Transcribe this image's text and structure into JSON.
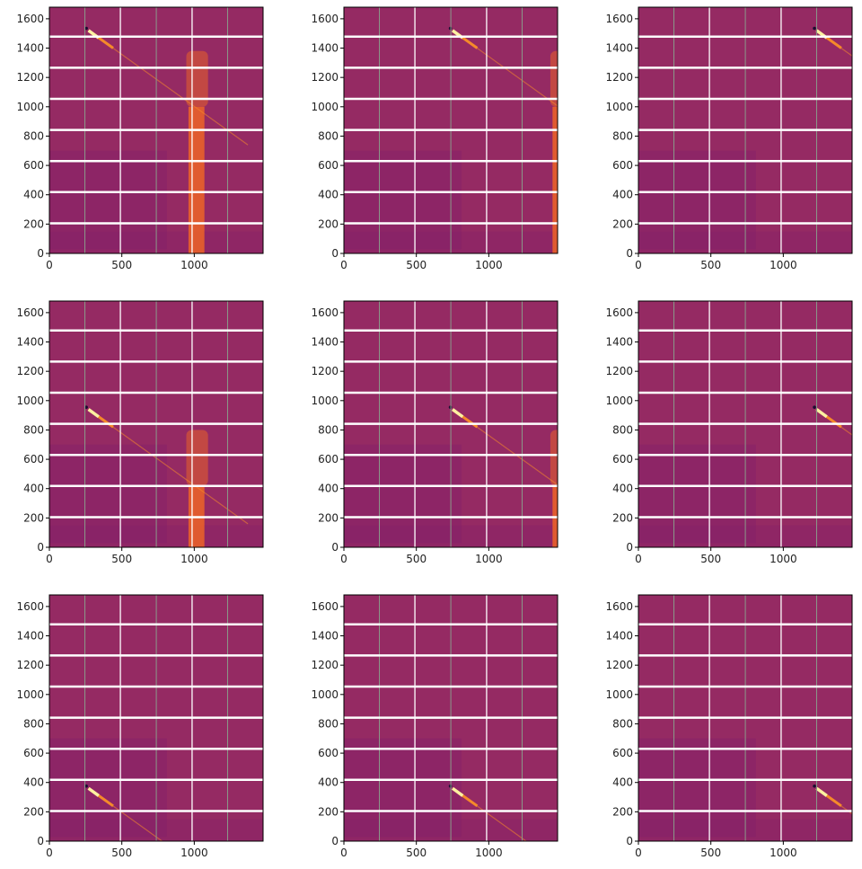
{
  "chart_data": {
    "type": "heatmap",
    "colormap": "inferno",
    "layout": {
      "rows": 3,
      "cols": 3
    },
    "xlim": [
      0,
      1475
    ],
    "ylim": [
      0,
      1679
    ],
    "xticks": [
      0,
      500,
      1000
    ],
    "yticks": [
      0,
      200,
      400,
      600,
      800,
      1000,
      1200,
      1400,
      1600
    ],
    "module_gaps_y": [
      205,
      418,
      630,
      842,
      1054,
      1266,
      1478
    ],
    "module_gaps_x_bright": [
      490,
      985
    ],
    "module_gaps_x_faint": [
      245,
      738,
      1230
    ],
    "colors": {
      "background": "#952a63",
      "background_dark": "#83206a",
      "streak": "#f58a2a",
      "beam": "#fcf1a0",
      "shadow": "#e8602a",
      "gap": "#ffffff"
    },
    "panels": [
      {
        "beam_center": [
          270,
          1520
        ],
        "beamstop_visible": true
      },
      {
        "beam_center": [
          750,
          1520
        ],
        "beamstop_visible": true
      },
      {
        "beam_center": [
          1230,
          1520
        ],
        "beamstop_visible": false
      },
      {
        "beam_center": [
          270,
          940
        ],
        "beamstop_visible": true
      },
      {
        "beam_center": [
          750,
          940
        ],
        "beamstop_visible": true
      },
      {
        "beam_center": [
          1230,
          940
        ],
        "beamstop_visible": false
      },
      {
        "beam_center": [
          270,
          360
        ],
        "beamstop_visible": false
      },
      {
        "beam_center": [
          750,
          360
        ],
        "beamstop_visible": false
      },
      {
        "beam_center": [
          1230,
          360
        ],
        "beamstop_visible": false
      }
    ]
  }
}
